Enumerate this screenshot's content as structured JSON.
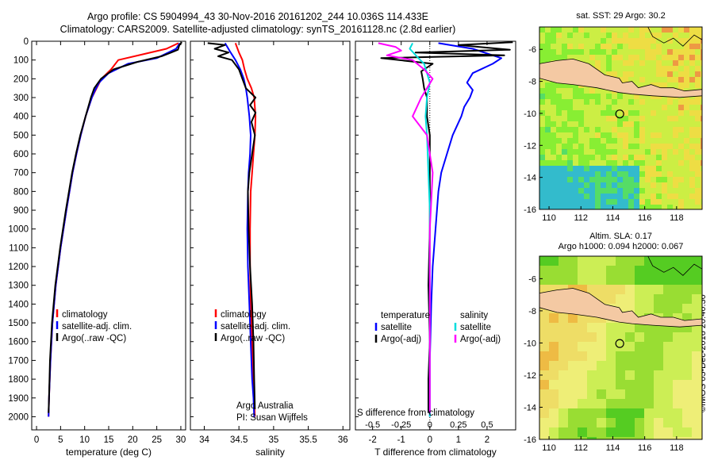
{
  "header": {
    "title_line1": "Argo profile: CS 5904994_43 30-Nov-2016 20161202_244 10.036S 114.433E",
    "title_line2": "Climatology: CARS2009. Satellite-adjusted climatology: synTS_20161128.nc (2.8d earlier)"
  },
  "side_stamp": "©IMOS 05-Dec-2016 20:40:30",
  "colors": {
    "climatology": "#ff0000",
    "satellite": "#0000ff",
    "argo": "#000000",
    "sal_satellite": "#00dddd",
    "sal_argo": "#ff00ff"
  },
  "chart_data": [
    {
      "type": "line",
      "xlabel": "temperature (deg C)",
      "ylabel": "",
      "xlim": [
        -1,
        31
      ],
      "ylim": [
        2070,
        0
      ],
      "xticks": [
        0,
        5,
        10,
        15,
        20,
        25,
        30
      ],
      "yticks": [
        0,
        100,
        200,
        300,
        400,
        500,
        600,
        700,
        800,
        900,
        1000,
        1100,
        1200,
        1300,
        1400,
        1500,
        1600,
        1700,
        1800,
        1900,
        2000
      ],
      "legend": [
        "climatology",
        "satellite-adj. clim.",
        "Argo(..raw -QC)"
      ],
      "series": [
        {
          "name": "climatology",
          "color": "#ff0000",
          "x": [
            29.5,
            27,
            22,
            17,
            15.5,
            13.5,
            12.5,
            11.5,
            10.2,
            9.2,
            8.3,
            7.5,
            6.2,
            5,
            4,
            3.3,
            2.9,
            2.6,
            2.5
          ],
          "y": [
            10,
            40,
            70,
            100,
            150,
            200,
            250,
            300,
            400,
            500,
            600,
            700,
            900,
            1100,
            1300,
            1500,
            1700,
            1900,
            2000
          ]
        },
        {
          "name": "satellite-adj. clim.",
          "color": "#0000ff",
          "x": [
            29.8,
            29,
            25,
            19,
            15,
            13,
            12.2,
            11.5,
            10.2,
            9.2,
            8.3,
            7.5,
            6.2,
            5,
            4,
            3.3,
            2.9,
            2.6,
            2.5
          ],
          "y": [
            10,
            40,
            90,
            120,
            170,
            220,
            260,
            300,
            400,
            500,
            600,
            700,
            900,
            1100,
            1300,
            1500,
            1700,
            1900,
            2000
          ]
        },
        {
          "name": "Argo(..raw -QC)",
          "color": "#000000",
          "x": [
            30.2,
            29.7,
            29.4,
            28,
            26,
            21,
            16,
            13.4,
            12,
            11.3,
            10.2,
            9.1,
            8.2,
            7.4,
            6.1,
            4.9,
            3.9,
            3.2,
            2.8,
            2.6,
            2.5
          ],
          "y": [
            5,
            20,
            45,
            60,
            80,
            110,
            150,
            200,
            250,
            300,
            400,
            500,
            600,
            700,
            900,
            1100,
            1300,
            1500,
            1700,
            1900,
            1980
          ]
        }
      ]
    },
    {
      "type": "line",
      "xlabel": "salinity",
      "ylabel": "",
      "xlim": [
        33.8,
        36.1
      ],
      "ylim": [
        2070,
        0
      ],
      "xticks": [
        34,
        34.5,
        35,
        35.5,
        36
      ],
      "legend": [
        "climatology",
        "satellite-adj. clim.",
        "Argo(..raw -QC)"
      ],
      "annotations": [
        "Argo Australia",
        "PI: Susan Wijffels"
      ],
      "series": [
        {
          "name": "climatology",
          "color": "#ff0000",
          "x": [
            34.45,
            34.5,
            34.55,
            34.58,
            34.62,
            34.68,
            34.72,
            34.74,
            34.73,
            34.71,
            34.69,
            34.67,
            34.66,
            34.66,
            34.67,
            34.69,
            34.71,
            34.72,
            34.73
          ],
          "y": [
            10,
            60,
            100,
            150,
            200,
            250,
            300,
            400,
            500,
            600,
            700,
            800,
            1000,
            1200,
            1400,
            1600,
            1800,
            1900,
            2000
          ]
        },
        {
          "name": "satellite-adj. clim.",
          "color": "#0000ff",
          "x": [
            34.3,
            34.38,
            34.45,
            34.52,
            34.57,
            34.6,
            34.62,
            34.65,
            34.67,
            34.66,
            34.64,
            34.63,
            34.62,
            34.63,
            34.65,
            34.67,
            34.69,
            34.71,
            34.72
          ],
          "y": [
            10,
            60,
            100,
            150,
            200,
            250,
            300,
            400,
            500,
            600,
            700,
            800,
            1000,
            1200,
            1400,
            1600,
            1800,
            1900,
            2000
          ]
        },
        {
          "name": "Argo(..raw -QC)",
          "color": "#000000",
          "x": [
            34.05,
            34.3,
            34.15,
            34.35,
            34.2,
            34.4,
            34.5,
            34.55,
            34.6,
            34.74,
            34.66,
            34.74,
            34.68,
            34.73,
            34.69,
            34.65,
            34.63,
            34.64,
            34.66,
            34.69,
            34.71,
            34.72,
            34.73
          ],
          "y": [
            10,
            20,
            40,
            60,
            80,
            100,
            150,
            200,
            250,
            300,
            340,
            380,
            430,
            500,
            600,
            700,
            800,
            1000,
            1200,
            1400,
            1600,
            1800,
            1960
          ]
        }
      ]
    },
    {
      "type": "line",
      "xlabel": "T difference from climatology",
      "x2label": "S difference from climatology",
      "xlim": [
        -2.6,
        3
      ],
      "ylim": [
        2070,
        0
      ],
      "xticks": [
        -2,
        -1,
        0,
        1,
        2
      ],
      "x2ticks": [
        "-0.5",
        "-0.25",
        "0",
        "0.25",
        "0.5"
      ],
      "legend_groups": [
        {
          "title": "temperature",
          "items": [
            "satellite",
            "Argo(-adj)"
          ]
        },
        {
          "title": "salinity",
          "items": [
            "satellite",
            "Argo(-adj)"
          ]
        }
      ],
      "series": [
        {
          "name": "temperature satellite",
          "color": "#0000ff",
          "x": [
            0.3,
            1.5,
            2.5,
            2.2,
            1.5,
            1.3,
            1.5,
            1.4,
            1.2,
            1.1,
            0.8,
            0.6,
            0.4,
            0.3,
            0.2,
            0.1,
            0.05,
            0,
            0
          ],
          "y": [
            10,
            40,
            90,
            120,
            170,
            220,
            260,
            300,
            350,
            400,
            500,
            600,
            700,
            800,
            1000,
            1200,
            1400,
            1700,
            2000
          ]
        },
        {
          "name": "temperature Argo(-adj)",
          "color": "#000000",
          "x": [
            2.9,
            1,
            2.8,
            -0.5,
            2.6,
            -1.7,
            0.1,
            -0.3,
            -0.25,
            -0.2,
            -0.1,
            -0.1,
            0,
            0,
            0,
            -0.05,
            0,
            -0.05,
            -0.05
          ],
          "y": [
            5,
            20,
            45,
            60,
            75,
            90,
            120,
            160,
            200,
            250,
            300,
            400,
            500,
            700,
            1000,
            1300,
            1600,
            1800,
            1980
          ]
        },
        {
          "name": "salinity satellite",
          "color": "#00dddd",
          "x": [
            -0.6,
            -0.7,
            -0.4,
            -0.2,
            -0.1,
            0,
            -0.1,
            -0.15,
            -0.1,
            -0.05,
            0,
            0,
            0,
            0,
            0
          ],
          "y": [
            10,
            40,
            90,
            120,
            170,
            220,
            300,
            400,
            500,
            700,
            900,
            1200,
            1500,
            1800,
            2000
          ]
        },
        {
          "name": "salinity Argo(-adj)",
          "color": "#ff00ff",
          "x": [
            -1.8,
            -1.2,
            -1,
            -1.5,
            -0.6,
            -0.2,
            0.1,
            -0.1,
            -0.3,
            -0.6,
            -0.1,
            0.1,
            0,
            0,
            0
          ],
          "y": [
            10,
            30,
            50,
            75,
            100,
            150,
            200,
            250,
            300,
            400,
            500,
            700,
            1000,
            1500,
            1980
          ]
        }
      ]
    },
    {
      "type": "heatmap",
      "title": "sat. SST: 29 Argo: 30.2",
      "xlim": [
        109.4,
        119.6
      ],
      "ylim": [
        -16,
        -4.6
      ],
      "xticks": [
        110,
        112,
        114,
        116,
        118
      ],
      "yticks": [
        -6,
        -8,
        -10,
        -12,
        -14,
        -16
      ],
      "marker": {
        "lon": 114.433,
        "lat": -10.036
      }
    },
    {
      "type": "heatmap",
      "title": "Altim. SLA: 0.17",
      "subtitle": "Argo h1000: 0.094 h2000: 0.067",
      "xlim": [
        109.4,
        119.6
      ],
      "ylim": [
        -16,
        -4.6
      ],
      "xticks": [
        110,
        112,
        114,
        116,
        118
      ],
      "yticks": [
        -6,
        -8,
        -10,
        -12,
        -14,
        -16
      ],
      "marker": {
        "lon": 114.433,
        "lat": -10.036
      }
    }
  ]
}
